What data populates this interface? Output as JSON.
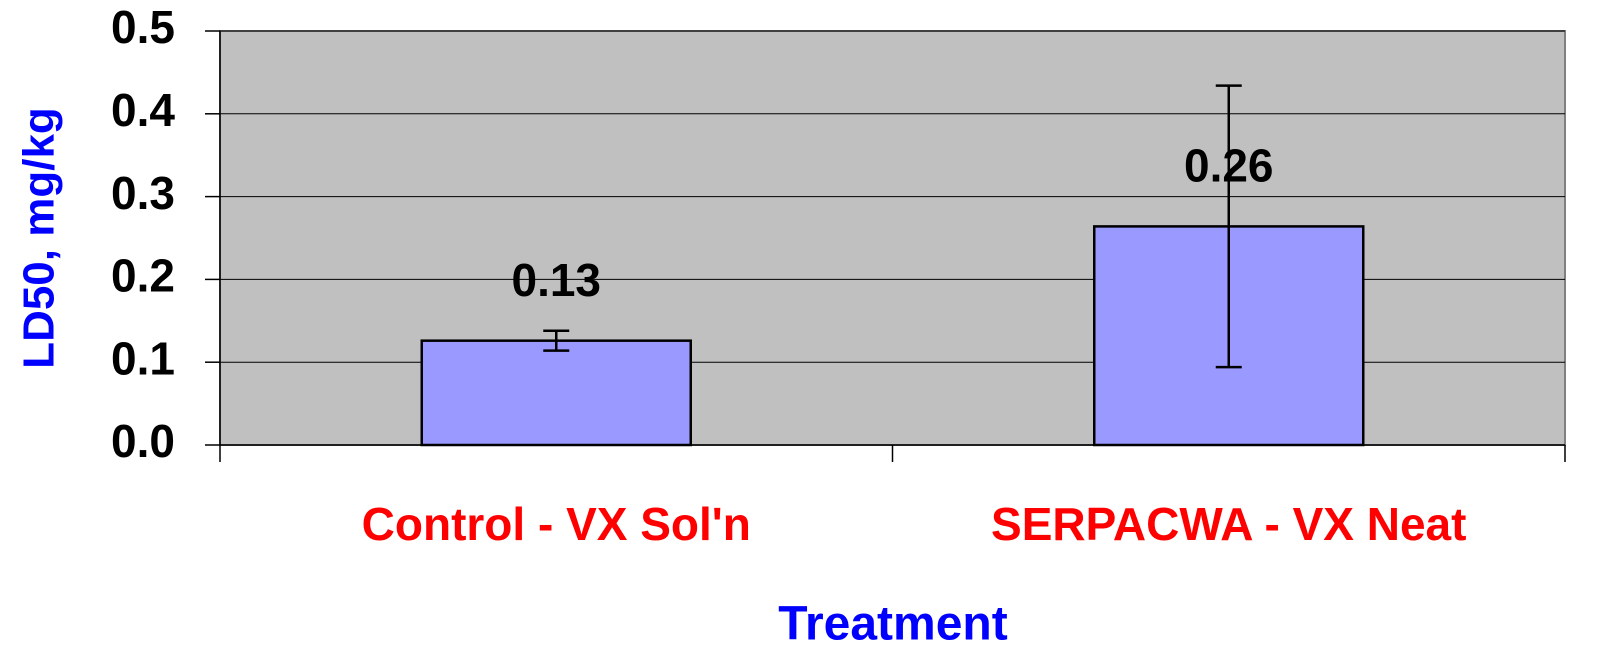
{
  "chart_data": {
    "type": "bar",
    "categories": [
      "Control - VX Sol'n",
      "SERPACWA - VX Neat"
    ],
    "values": [
      0.126,
      0.264
    ],
    "value_labels": [
      "0.13",
      "0.26"
    ],
    "errors": [
      0.012,
      0.17
    ],
    "color": "#9999ff",
    "background": "#c0c0c0",
    "x_label": "Treatment",
    "y_label": "LD50, mg/kg",
    "ylim": [
      0,
      0.5
    ],
    "yticks": [
      {
        "value": 0,
        "label": "0.0"
      },
      0.1,
      0.2,
      0.3,
      0.4,
      0.5
    ],
    "grid": true
  }
}
